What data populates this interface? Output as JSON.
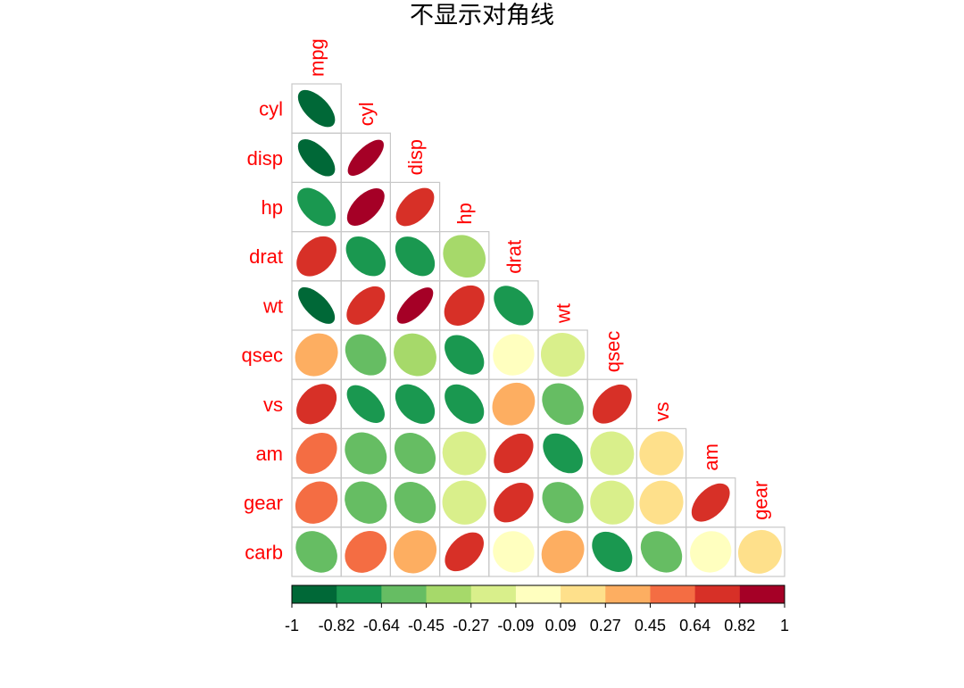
{
  "chart_data": {
    "type": "heatmap",
    "title": "不显示对角线",
    "variables": [
      "mpg",
      "cyl",
      "disp",
      "hp",
      "drat",
      "wt",
      "qsec",
      "vs",
      "am",
      "gear",
      "carb"
    ],
    "row_labels": [
      "cyl",
      "disp",
      "hp",
      "drat",
      "wt",
      "qsec",
      "vs",
      "am",
      "gear",
      "carb"
    ],
    "col_labels": [
      "mpg",
      "cyl",
      "disp",
      "hp",
      "drat",
      "wt",
      "qsec",
      "vs",
      "am",
      "gear"
    ],
    "method": "ellipse",
    "diagonal_shown": false,
    "lower_triangle_matrix": [
      [
        -0.85
      ],
      [
        -0.85,
        0.9
      ],
      [
        -0.78,
        0.83,
        0.79
      ],
      [
        0.68,
        -0.7,
        -0.71,
        -0.45
      ],
      [
        -0.87,
        0.78,
        0.89,
        0.66,
        -0.71
      ],
      [
        0.42,
        -0.59,
        -0.43,
        -0.71,
        0.09,
        -0.17
      ],
      [
        0.66,
        -0.81,
        -0.71,
        -0.72,
        0.44,
        -0.55,
        0.74
      ],
      [
        0.6,
        -0.52,
        -0.59,
        -0.24,
        0.71,
        -0.69,
        -0.23,
        0.17
      ],
      [
        0.48,
        -0.49,
        -0.56,
        -0.13,
        0.7,
        -0.58,
        -0.21,
        0.21,
        0.79
      ],
      [
        -0.55,
        0.53,
        0.39,
        0.75,
        -0.09,
        0.43,
        -0.66,
        -0.57,
        0.06,
        0.27
      ]
    ],
    "colorbar": {
      "range": [
        -1,
        1
      ],
      "tick_labels": [
        "-1",
        "-0.82",
        "-0.64",
        "-0.45",
        "-0.27",
        "-0.09",
        "0.09",
        "0.27",
        "0.45",
        "0.64",
        "0.82",
        "1"
      ],
      "colors": [
        "#006837",
        "#1a9850",
        "#66bd63",
        "#a6d96a",
        "#d9ef8b",
        "#ffffbf",
        "#fee08b",
        "#fdae61",
        "#f46d43",
        "#d73027",
        "#a50026"
      ]
    },
    "label_color": "#ff0000",
    "grid_color": "#c8c8c8"
  }
}
